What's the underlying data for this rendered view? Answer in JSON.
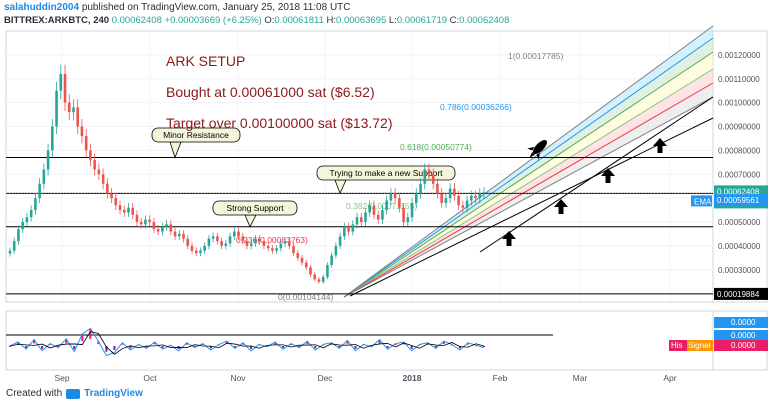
{
  "header": {
    "user": "salahuddin2004",
    "published": "published on TradingView.com, January 25, 2018 11:08 UTC"
  },
  "ohlc": {
    "symbol": "BITTREX:ARKBTC, 240",
    "last": "0.00062408",
    "change": "+0.00003669 (+6.25%)",
    "o_label": "O:",
    "o": "0.00061811",
    "h_label": "H:",
    "h": "0.00063695",
    "l_label": "L:",
    "l": "0.00061719",
    "c_label": "C:",
    "c": "0.00062408"
  },
  "footer": {
    "created_with": "Created with",
    "brand": "TradingView"
  },
  "colors": {
    "up": "#26a69a",
    "down": "#ef5350",
    "title_text": "#8b1a1a",
    "fib_0": "#808080",
    "fib_0236": "#f23645",
    "fib_0382": "#81c784",
    "fib_0618": "#4caf50",
    "fib_0786": "#2196f3",
    "fib_1": "#808080",
    "ema_badge": "#2196f3"
  },
  "chart_data": {
    "type": "candlestick",
    "title": "ARK SETUP",
    "subtitle_lines": [
      "Bought at 0.00061000 sat ($6.52)",
      "Target over 0.00100000 sat ($13.72)"
    ],
    "x_ticks": [
      "Sep",
      "Oct",
      "Nov",
      "Dec",
      "2018",
      "Feb",
      "Mar",
      "Apr"
    ],
    "y_ticks": [
      "0.00120000",
      "0.00110000",
      "0.00100000",
      "0.00090000",
      "0.00080000",
      "0.00070000",
      "0.00060000",
      "0.00050000",
      "0.00040000",
      "0.00030000",
      "0.00020000"
    ],
    "ylim": [
      0.000165,
      0.0013
    ],
    "price_labels": {
      "last": "0.00062408",
      "countdown": "52:04",
      "ema_tag": "EMA",
      "ema_value": "0.00059561",
      "level_low": "0.00019884"
    },
    "series": [
      {
        "name": "ARKBTC",
        "close": [
          0.00038,
          0.00042,
          0.00047,
          0.0005,
          0.00052,
          0.00055,
          0.0006,
          0.00066,
          0.00072,
          0.0008,
          0.0009,
          0.00105,
          0.00112,
          0.001,
          0.00096,
          0.00098,
          0.0009,
          0.00086,
          0.0008,
          0.00076,
          0.00072,
          0.0007,
          0.00066,
          0.00062,
          0.0006,
          0.00057,
          0.00055,
          0.00054,
          0.00056,
          0.00053,
          0.0005,
          0.00049,
          0.00051,
          0.0005,
          0.00047,
          0.00046,
          0.00048,
          0.00049,
          0.00046,
          0.00044,
          0.00045,
          0.00043,
          0.0004,
          0.00038,
          0.00037,
          0.00038,
          0.0004,
          0.00043,
          0.00044,
          0.00042,
          0.0004,
          0.00041,
          0.00044,
          0.00046,
          0.00044,
          0.00042,
          0.0004,
          0.00041,
          0.00043,
          0.00042,
          0.0004,
          0.00039,
          0.00038,
          0.00039,
          0.00041,
          0.00042,
          0.0004,
          0.00037,
          0.00035,
          0.00033,
          0.00031,
          0.00028,
          0.00026,
          0.00025,
          0.00027,
          0.00032,
          0.00036,
          0.0004,
          0.00044,
          0.00048,
          0.00046,
          0.00049,
          0.00052,
          0.0005,
          0.00054,
          0.00057,
          0.00053,
          0.00051,
          0.00055,
          0.00059,
          0.00062,
          0.0006,
          0.00056,
          0.0005,
          0.00052,
          0.00058,
          0.00062,
          0.00066,
          0.00072,
          0.0007,
          0.00066,
          0.00062,
          0.00058,
          0.0006,
          0.00064,
          0.00061,
          0.00057,
          0.00056,
          0.00059,
          0.00061,
          0.0006,
          0.00062,
          0.00062408
        ]
      }
    ],
    "horizontal_levels": [
      {
        "price": 0.00077,
        "label": "Minor Resistance"
      },
      {
        "price": 0.00062,
        "label": "Trying to make a new  Support"
      },
      {
        "price": 0.00048,
        "label": "Strong Support"
      },
      {
        "price": 0.00019884,
        "label": ""
      }
    ],
    "fib_fan": [
      {
        "level": "0",
        "label": "0(0.00104144)"
      },
      {
        "level": "0.236",
        "label": "0.236(0.00083763)"
      },
      {
        "level": "0.382",
        "label": "0.382(0.00071155)"
      },
      {
        "level": "0.618",
        "label": "0.618(0.00050774)"
      },
      {
        "level": "0.786",
        "label": "0.786(0.00036266)"
      },
      {
        "level": "1",
        "label": "1(0.00017785)"
      }
    ],
    "indicator": {
      "name": "His",
      "signal_label": "Signal",
      "values": [
        "0.0000",
        "0.0000",
        "0.0000"
      ],
      "osc": [
        0.0,
        0.5,
        -0.4,
        0.8,
        -0.6,
        0.3,
        -0.2,
        0.9,
        -0.7,
        1.5,
        2.2,
        0.6,
        -1.2,
        -0.8,
        0.4,
        -0.5,
        0.2,
        -0.3,
        0.5,
        -0.4,
        0.1,
        -0.6,
        0.4,
        -0.2,
        0.3,
        -0.5,
        0.2,
        0.6,
        -0.3,
        0.4,
        -0.6,
        0.2,
        -0.1,
        0.5,
        -0.4,
        0.3,
        -0.2,
        0.6,
        -0.5,
        0.2,
        0.4,
        -0.3,
        0.7,
        -0.6,
        0.2,
        -0.1,
        0.8,
        -0.4,
        0.3,
        0.5,
        -0.6,
        0.2,
        0.4,
        -0.3,
        0.6,
        0.2,
        -0.5,
        0.4,
        0.1,
        -0.2
      ]
    }
  }
}
